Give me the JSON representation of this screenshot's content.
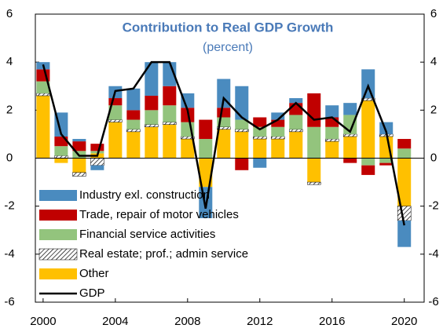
{
  "chart_data": {
    "type": "bar",
    "stacked": true,
    "title": "Contribution to Real GDP Growth",
    "subtitle": "(percent)",
    "x": [
      2000,
      2001,
      2002,
      2003,
      2004,
      2005,
      2006,
      2007,
      2008,
      2009,
      2010,
      2011,
      2012,
      2013,
      2014,
      2015,
      2016,
      2017,
      2018,
      2019,
      2020
    ],
    "xlim": [
      1999.57,
      2021.1
    ],
    "xticks": [
      2000,
      2004,
      2008,
      2012,
      2016,
      2020
    ],
    "ylim": [
      -6,
      6
    ],
    "yticks": [
      -6,
      -4,
      -2,
      0,
      2,
      4,
      6
    ],
    "y2lim": [
      -6,
      6
    ],
    "y2ticks": [
      -6,
      -4,
      -2,
      0,
      2,
      4,
      6
    ],
    "legend": "lower left",
    "series": [
      {
        "name": "Industry exl. construction",
        "color": "#4a8bbf",
        "values": [
          0.3,
          1.0,
          0.1,
          -0.2,
          0.5,
          0.9,
          1.4,
          1.0,
          0.6,
          -1.3,
          1.2,
          1.4,
          -0.4,
          0.3,
          0.2,
          0,
          0.5,
          0.5,
          1.2,
          0.5,
          -1.1
        ]
      },
      {
        "name": "Trade, repair of motor vehicles",
        "color": "#c00000",
        "values": [
          0.5,
          0.4,
          0.4,
          0.3,
          0.3,
          0.4,
          0.6,
          0.8,
          0.6,
          0.8,
          0.4,
          -0.5,
          0.4,
          0.3,
          0.5,
          1.4,
          0.4,
          -0.2,
          -0.4,
          -0.1,
          0.4
        ]
      },
      {
        "name": "Financial service activities",
        "color": "#93c47d",
        "values": [
          0.5,
          0.4,
          0.3,
          0.1,
          0.6,
          0.4,
          0.6,
          0.7,
          0.6,
          0.8,
          0.4,
          0.4,
          0.4,
          0.4,
          0.6,
          1.3,
          0.5,
          0.8,
          -0.3,
          -0.2,
          0.4
        ]
      },
      {
        "name": "Real estate; prof.; admin service",
        "color": "#ffffff",
        "hatch": true,
        "values": [
          0.1,
          0.1,
          -0.15,
          -0.3,
          0.1,
          0.1,
          0.1,
          0.1,
          0.1,
          0,
          0.1,
          0.1,
          0.1,
          0.1,
          0.1,
          -0.1,
          0.1,
          0.1,
          0.1,
          0.1,
          -0.6
        ]
      },
      {
        "name": "Other",
        "color": "#ffc000",
        "values": [
          2.6,
          -0.2,
          -0.6,
          0.2,
          1.5,
          1.1,
          1.3,
          1.4,
          0.8,
          -1.2,
          1.2,
          1.1,
          0.8,
          0.8,
          1.1,
          -1.0,
          0.7,
          0.9,
          2.4,
          0.9,
          -2.0
        ]
      },
      {
        "name": "GDP",
        "type": "line",
        "color": "#000000",
        "values": [
          3.9,
          1.0,
          0.1,
          0.1,
          2.8,
          2.9,
          4.0,
          4.0,
          2.0,
          -2.1,
          2.5,
          1.7,
          1.2,
          1.6,
          2.3,
          1.6,
          1.7,
          1.1,
          3.0,
          1.1,
          -2.8
        ]
      }
    ]
  }
}
